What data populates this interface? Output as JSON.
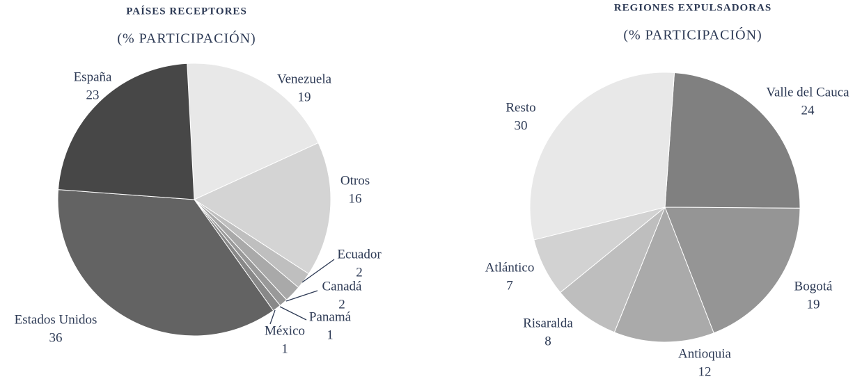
{
  "chart_data": [
    {
      "type": "pie",
      "title": "PAÍSES RECEPTORES",
      "subtitle": "(% PARTICIPACIÓN)",
      "categories": [
        "Venezuela",
        "Otros",
        "Ecuador",
        "Canadá",
        "Panamá",
        "México",
        "Estados Unidos",
        "España"
      ],
      "values": [
        19,
        16,
        2,
        2,
        1,
        1,
        36,
        23
      ],
      "colors": [
        "#e8e8e8",
        "#d4d4d4",
        "#bfbfbf",
        "#a9a9a9",
        "#999999",
        "#888888",
        "#636363",
        "#474747"
      ]
    },
    {
      "type": "pie",
      "title": "REGIONES EXPULSADORAS",
      "subtitle": "(% PARTICIPACIÓN)",
      "categories": [
        "Valle del Cauca",
        "Bogotá",
        "Antioquia",
        "Risaralda",
        "Atlántico",
        "Resto"
      ],
      "values": [
        24,
        19,
        12,
        8,
        7,
        30
      ],
      "colors": [
        "#808080",
        "#959595",
        "#aaaaaa",
        "#bebebe",
        "#d2d2d2",
        "#e8e8e8"
      ]
    }
  ]
}
